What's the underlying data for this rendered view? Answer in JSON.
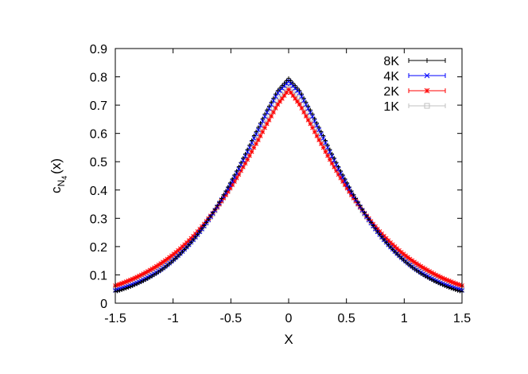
{
  "chart_data": {
    "type": "scatter",
    "title": "",
    "xlabel": "X",
    "ylabel": "c_{N_4}(x)",
    "ylabel_main": "c",
    "ylabel_sub": "N",
    "ylabel_subsub": "4",
    "ylabel_arg": "(x)",
    "xlim": [
      -1.5,
      1.5
    ],
    "ylim": [
      0,
      0.9
    ],
    "x_ticks": [
      "-1.5",
      "-1",
      "-0.5",
      "0",
      "0.5",
      "1",
      "1.5"
    ],
    "x_tick_values": [
      -1.5,
      -1,
      -0.5,
      0,
      0.5,
      1,
      1.5
    ],
    "y_ticks": [
      "0",
      "0.1",
      "0.2",
      "0.3",
      "0.4",
      "0.5",
      "0.6",
      "0.7",
      "0.8",
      "0.9"
    ],
    "y_tick_values": [
      0,
      0.1,
      0.2,
      0.3,
      0.4,
      0.5,
      0.6,
      0.7,
      0.8,
      0.9
    ],
    "grid": false,
    "legend_position": "top-right",
    "x": [
      -1.5,
      -1.4,
      -1.3,
      -1.2,
      -1.1,
      -1.0,
      -0.9,
      -0.8,
      -0.7,
      -0.6,
      -0.5,
      -0.4,
      -0.3,
      -0.2,
      -0.1,
      0.0,
      0.1,
      0.2,
      0.3,
      0.4,
      0.5,
      0.6,
      0.7,
      0.8,
      0.9,
      1.0,
      1.1,
      1.2,
      1.3,
      1.4,
      1.5
    ],
    "series": [
      {
        "name": "1K",
        "color": "#c0c0c0",
        "marker": "square",
        "values": [
          0.052,
          0.066,
          0.083,
          0.103,
          0.127,
          0.158,
          0.195,
          0.238,
          0.29,
          0.35,
          0.415,
          0.487,
          0.565,
          0.642,
          0.712,
          0.77,
          0.712,
          0.642,
          0.565,
          0.487,
          0.415,
          0.35,
          0.29,
          0.238,
          0.195,
          0.158,
          0.127,
          0.103,
          0.083,
          0.066,
          0.052
        ]
      },
      {
        "name": "2K",
        "color": "#ff0000",
        "marker": "star",
        "values": [
          0.062,
          0.077,
          0.095,
          0.117,
          0.142,
          0.172,
          0.207,
          0.248,
          0.296,
          0.35,
          0.41,
          0.477,
          0.55,
          0.625,
          0.699,
          0.755,
          0.699,
          0.625,
          0.55,
          0.477,
          0.41,
          0.35,
          0.296,
          0.248,
          0.207,
          0.172,
          0.142,
          0.117,
          0.095,
          0.077,
          0.062
        ]
      },
      {
        "name": "4K",
        "color": "#0000ff",
        "marker": "x",
        "values": [
          0.045,
          0.058,
          0.074,
          0.095,
          0.12,
          0.152,
          0.19,
          0.236,
          0.291,
          0.354,
          0.422,
          0.5,
          0.583,
          0.665,
          0.74,
          0.785,
          0.74,
          0.665,
          0.583,
          0.5,
          0.422,
          0.354,
          0.291,
          0.236,
          0.19,
          0.152,
          0.12,
          0.095,
          0.074,
          0.058,
          0.045
        ]
      },
      {
        "name": "8K",
        "color": "#000000",
        "marker": "plus",
        "values": [
          0.04,
          0.053,
          0.07,
          0.091,
          0.117,
          0.15,
          0.19,
          0.237,
          0.293,
          0.357,
          0.43,
          0.508,
          0.592,
          0.674,
          0.749,
          0.795,
          0.749,
          0.674,
          0.592,
          0.508,
          0.43,
          0.357,
          0.293,
          0.237,
          0.19,
          0.15,
          0.117,
          0.091,
          0.07,
          0.053,
          0.04
        ]
      }
    ]
  },
  "legend": {
    "items": [
      {
        "label": "8K",
        "color": "#000000",
        "marker": "plus"
      },
      {
        "label": "4K",
        "color": "#0000ff",
        "marker": "x"
      },
      {
        "label": "2K",
        "color": "#ff0000",
        "marker": "star"
      },
      {
        "label": "1K",
        "color": "#c0c0c0",
        "marker": "square"
      }
    ]
  }
}
